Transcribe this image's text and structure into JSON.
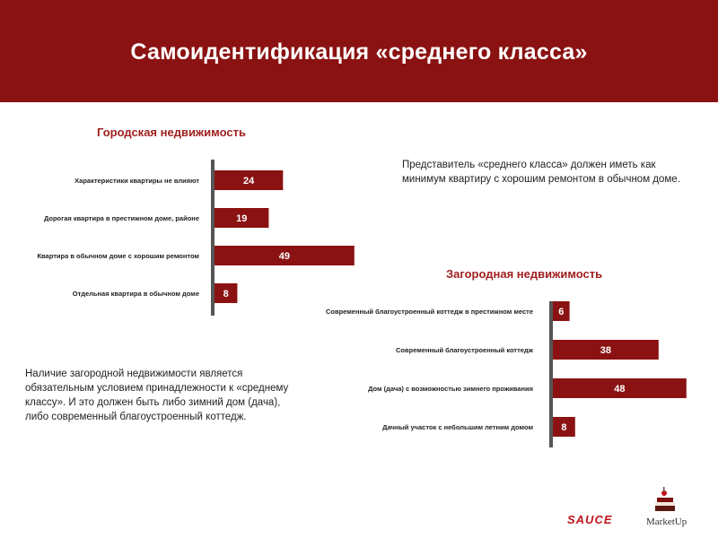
{
  "header": {
    "title": "Самоидентификация «среднего класса»"
  },
  "notes": {
    "urban": "Представитель «среднего класса» должен иметь как минимум квартиру с хорошим ремонтом в обычном доме.",
    "suburban": "Наличие загородной недвижимости является обязательным условием принадлежности к «среднему классу». И это должен быть либо зимний дом (дача), либо современный благоустроенный коттедж."
  },
  "logos": {
    "sauce": "SAUCE",
    "marketup": "MarketUp"
  },
  "colors": {
    "header": "#8b1212",
    "bar": "#8b1212",
    "axis": "#555555",
    "title": "#a02020"
  },
  "chart_data": [
    {
      "type": "bar",
      "orientation": "horizontal",
      "title": "Городская недвижимость",
      "categories": [
        "Характеристики квартиры не влияют",
        "Дорогая квартира в престижном доме, районе",
        "Квартира в обычном доме с хорошим ремонтом",
        "Отдельная квартира в обычном доме"
      ],
      "values": [
        24,
        19,
        49,
        8
      ],
      "xlim": [
        0,
        50
      ]
    },
    {
      "type": "bar",
      "orientation": "horizontal",
      "title": "Загородная недвижимость",
      "categories": [
        "Современный благоустроенный коттедж в престижном месте",
        "Современный благоустроенный коттедж",
        "Дом (дача) с возможностью зимнего проживания",
        "Дачный участок с небольшим летним домом"
      ],
      "values": [
        6,
        38,
        48,
        8
      ],
      "xlim": [
        0,
        50
      ]
    }
  ]
}
